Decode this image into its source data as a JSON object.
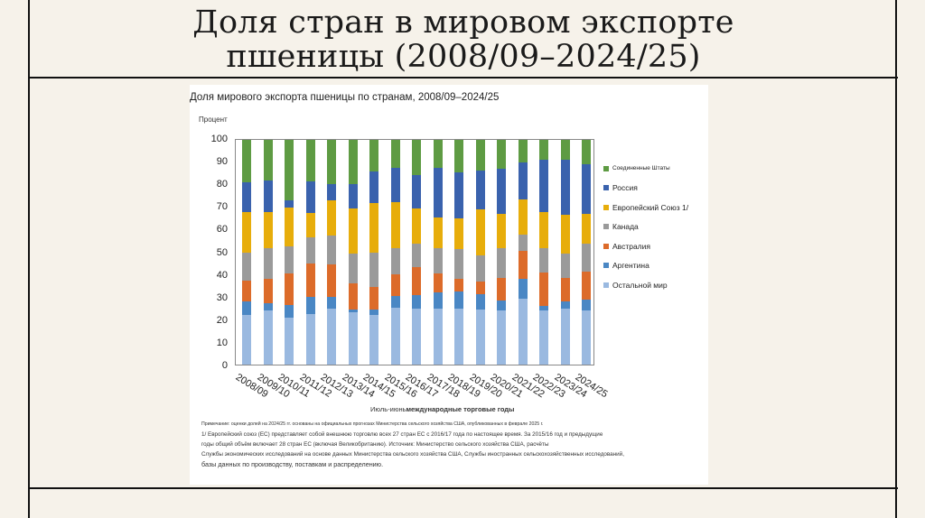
{
  "slide": {
    "title_line1": "Доля стран в мировом экспорте",
    "title_line2": "пшеницы (2008/09–2024/25)"
  },
  "figure": {
    "title": "Доля мирового экспорта пшеницы по странам, 2008/09–2024/25",
    "ylabel": "Процент",
    "xlabel_prefix": "Июль-июнь",
    "xlabel_main": "международные торговые годы",
    "notes": [
      "Примечание: оценки долей на 2024/25 гг. основаны на официальных прогнозах Министерства сельского хозяйства США, опубликованных в феврале 2025 г.",
      "1/ Европейский союз (ЕС) представляет собой внешнюю торговлю всех 27 стран ЕС с 2016/17 года по настоящее время. За 2015/16 год и предыдущие",
      "годы общий объём включает 28 стран ЕС (включая Великобританию). Источник: Министерство сельского хозяйства США, расчёты",
      "Службы экономических исследований на основе данных Министерства сельского хозяйства США, Службы иностранных сельскохозяйственных исследований,",
      "базы данных по производству, поставкам и распределению."
    ]
  },
  "chart_data": {
    "type": "bar",
    "stacked": true,
    "title": "Доля мирового экспорта пшеницы по странам, 2008/09–2024/25",
    "xlabel": "Июль-июнь международные торговые годы",
    "ylabel": "Процент",
    "ylim": [
      0,
      100
    ],
    "yticks": [
      "0",
      "10",
      "20",
      "30",
      "40",
      "50",
      "60",
      "70",
      "80",
      "90",
      "100"
    ],
    "grid": false,
    "legend_position": "right",
    "categories": [
      "2008/09",
      "2009/10",
      "2010/11",
      "2011/12",
      "2012/13",
      "2013/14",
      "2014/15",
      "2015/16",
      "2016/17",
      "2017/18",
      "2018/19",
      "2019/20",
      "2020/21",
      "2021/22",
      "2022/23",
      "2023/24",
      "2024/25"
    ],
    "series": [
      {
        "name": "Остальной мир",
        "color": "#9ab9e0",
        "values": [
          22,
          24,
          21,
          22.5,
          25,
          23.5,
          22,
          25.5,
          25,
          25,
          25,
          24.5,
          24,
          29.5,
          24,
          25,
          24
        ]
      },
      {
        "name": "Аргентина",
        "color": "#4a87c4",
        "values": [
          6,
          3.5,
          5.5,
          7.5,
          5,
          1,
          2.5,
          5,
          6,
          7,
          7.5,
          7,
          4.5,
          8.5,
          2,
          3,
          5
        ]
      },
      {
        "name": "Австралия",
        "color": "#dc6b2a",
        "values": [
          9.5,
          10.5,
          14,
          15,
          14.5,
          11.5,
          10,
          9.5,
          12.5,
          8.5,
          5.5,
          5.5,
          10,
          12.5,
          15,
          10.5,
          12.5
        ]
      },
      {
        "name": "Канада",
        "color": "#9a9a9a",
        "values": [
          12.5,
          14,
          12,
          11.5,
          13,
          13.5,
          15.5,
          12,
          10.5,
          11.5,
          13.5,
          11.5,
          13.5,
          7.5,
          11,
          11,
          12.5
        ]
      },
      {
        "name": "Европейский Союз 1/",
        "color": "#e7ad0b",
        "values": [
          18,
          16,
          17.5,
          11,
          15.5,
          20,
          22,
          20.5,
          15.5,
          13.5,
          13.5,
          20.5,
          15,
          15.5,
          16,
          17,
          13
        ]
      },
      {
        "name": "Россия",
        "color": "#3a62ad",
        "values": [
          13,
          14,
          3,
          14,
          7.5,
          11,
          14,
          15,
          15,
          22,
          20.5,
          17.5,
          20,
          16.5,
          23,
          24.5,
          22
        ]
      },
      {
        "name": "Соединенные Штаты",
        "color": "#5e9b43",
        "values": [
          19,
          18,
          27,
          18.5,
          19.5,
          19.5,
          14,
          12.5,
          15.5,
          12.5,
          14.5,
          13.5,
          13,
          10,
          9,
          9,
          11
        ]
      }
    ],
    "legend_order": [
      "Соединенные Штаты",
      "Россия",
      "Европейский Союз 1/",
      "Канада",
      "Австралия",
      "Аргентина",
      "Остальной мир"
    ]
  }
}
